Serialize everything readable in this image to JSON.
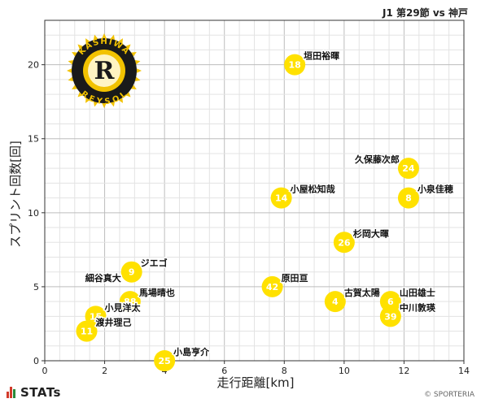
{
  "header": {
    "match_title": "J1 第29節 vs 神戸"
  },
  "footer": {
    "brand": "STATs",
    "credit": "© SPORTERIA"
  },
  "logo": {
    "text_top": "KASHIWA",
    "text_bottom": "REYSOL",
    "letter": "R",
    "colors": {
      "gold": "#f2c200",
      "black": "#1a1a1a"
    }
  },
  "colors": {
    "point": "#ffe100",
    "point_text": "#ffffff",
    "grid": "#c8c8c8",
    "footer_bar_red": "#d23a2a",
    "footer_bar_green": "#2a8a3a"
  },
  "chart_data": {
    "type": "scatter",
    "xlabel": "走行距離[km]",
    "ylabel": "スプリント回数[回]",
    "xlim": [
      0,
      14
    ],
    "ylim": [
      0,
      23
    ],
    "xticks": [
      0,
      2,
      4,
      6,
      8,
      10,
      12,
      14
    ],
    "yticks": [
      0,
      5,
      10,
      15,
      20
    ],
    "grid": true,
    "points": [
      {
        "number": "18",
        "name": "垣田裕暉",
        "x": 8.35,
        "y": 20,
        "label_side": "right"
      },
      {
        "number": "24",
        "name": "久保藤次郎",
        "x": 12.15,
        "y": 13,
        "label_side": "left"
      },
      {
        "number": "14",
        "name": "小屋松知哉",
        "x": 7.9,
        "y": 11,
        "label_side": "right"
      },
      {
        "number": "8",
        "name": "小泉佳穂",
        "x": 12.15,
        "y": 11,
        "label_side": "right"
      },
      {
        "number": "26",
        "name": "杉岡大暉",
        "x": 10.0,
        "y": 8,
        "label_side": "right"
      },
      {
        "number": "9",
        "name": "ジエゴ",
        "x": 2.9,
        "y": 6,
        "label_side": "right"
      },
      {
        "number": "42",
        "name": "原田亘",
        "x": 7.6,
        "y": 5,
        "label_side": "right"
      },
      {
        "number": "4",
        "name": "古賀太陽",
        "x": 9.7,
        "y": 4,
        "label_side": "right"
      },
      {
        "number": "6",
        "name": "山田雄士",
        "x": 11.55,
        "y": 4,
        "label_side": "right"
      },
      {
        "number": "39",
        "name": "中川敦瑛",
        "x": 11.55,
        "y": 3,
        "label_side": "right"
      },
      {
        "number": "88",
        "name": "馬場晴也",
        "x": 2.85,
        "y": 4,
        "label_side": "right"
      },
      {
        "number": "15",
        "name": "小見洋太",
        "x": 1.7,
        "y": 3,
        "label_side": "right"
      },
      {
        "number": "11",
        "name": "渡井理己",
        "x": 1.4,
        "y": 2,
        "label_side": "right"
      },
      {
        "number": "25",
        "name": "小島亨介",
        "x": 4.0,
        "y": 0,
        "label_side": "right"
      },
      {
        "name": "細谷真大",
        "x": 2.55,
        "y": 5.6,
        "label_only": true,
        "label_side": "left"
      }
    ]
  }
}
